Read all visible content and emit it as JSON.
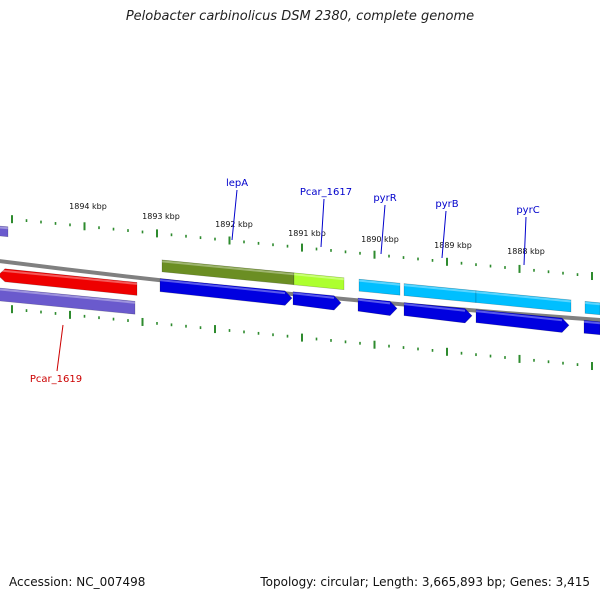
{
  "title": "Pelobacter carbinolicus DSM 2380, complete genome",
  "accession_text": "Accession: NC_007498",
  "summary_text": "Topology: circular; Length: 3,665,893 bp; Genes: 3,415",
  "colors": {
    "backbone": "#808080",
    "tick": "#2e8b2e",
    "cds_forward": "#0000e0",
    "cds_reverse": "#6a5acd",
    "gene_red": "#ee0000",
    "cog_olive": "#6b8e23",
    "cog_green": "#adff2f",
    "cog_cyan": "#00bfff",
    "label_blue": "#0000cc",
    "label_red": "#cc0000"
  },
  "kbp_labels": [
    "1894 kbp",
    "1893 kbp",
    "1892 kbp",
    "1891 kbp",
    "1890 kbp",
    "1889 kbp",
    "1888 kbp"
  ],
  "gene_labels": [
    "lepA",
    "Pcar_1617",
    "pyrR",
    "pyrB",
    "pyrC",
    "Pcar_1619"
  ]
}
